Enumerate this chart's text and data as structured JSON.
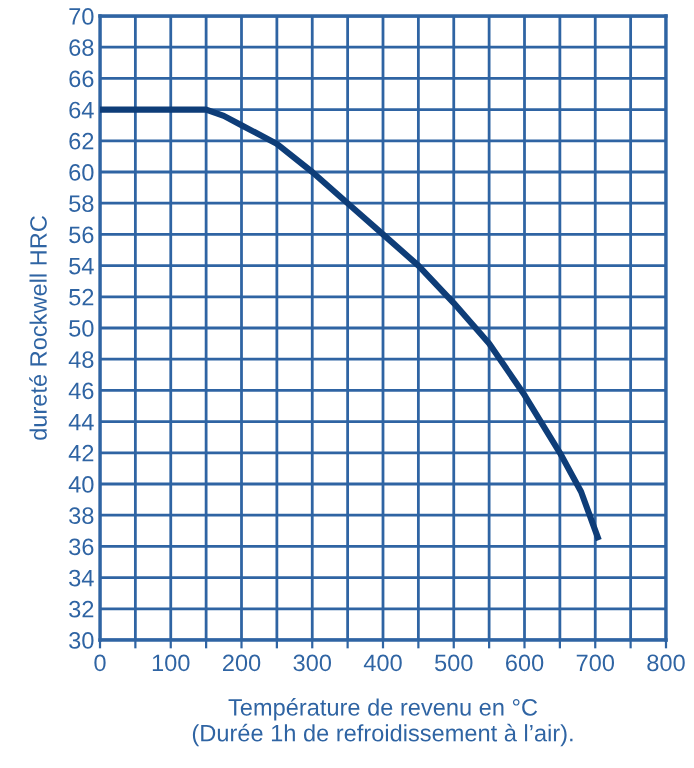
{
  "chart_data": {
    "type": "line",
    "xlabel": "Température de revenu en °C\n(Durée 1h de refroidissement à l’air).",
    "ylabel": "dureté Rockwell HRC",
    "series": [
      {
        "color": "#0e3d78",
        "x": [
          0,
          150,
          175,
          200,
          250,
          300,
          350,
          400,
          450,
          500,
          550,
          600,
          650,
          680,
          705
        ],
        "values": [
          64,
          64,
          63.6,
          63,
          61.8,
          60,
          58,
          56,
          54,
          51.6,
          49,
          45.7,
          42,
          39.5,
          36.4
        ]
      }
    ],
    "xlim": [
      0,
      800
    ],
    "xticks": [
      0,
      {
        "value": 50,
        "label": null
      },
      100,
      {
        "value": 150,
        "label": null
      },
      200,
      {
        "value": 250,
        "label": null
      },
      300,
      {
        "value": 350,
        "label": null
      },
      400,
      {
        "value": 450,
        "label": null
      },
      500,
      {
        "value": 550,
        "label": null
      },
      600,
      {
        "value": 650,
        "label": null
      },
      700,
      {
        "value": 750,
        "label": null
      },
      800
    ],
    "ylim": [
      30,
      70
    ],
    "yticks": [
      30,
      32,
      34,
      36,
      38,
      40,
      42,
      44,
      46,
      48,
      50,
      52,
      54,
      56,
      58,
      60,
      62,
      64,
      66,
      68,
      70
    ],
    "grid": true,
    "line_style": "solid",
    "marker": "none"
  }
}
